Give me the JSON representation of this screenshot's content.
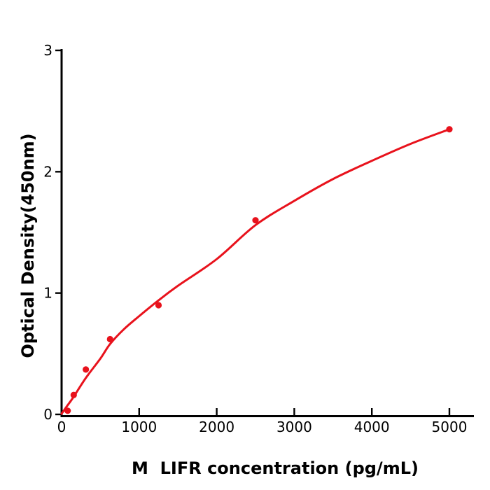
{
  "figure": {
    "background": "#ffffff"
  },
  "chart_data": {
    "type": "scatter",
    "title": "",
    "xlabel": "M  LIFR concentration (pg/mL)",
    "ylabel": "Optical Density(450nm)",
    "xlim": [
      0,
      5315
    ],
    "ylim": [
      0,
      3
    ],
    "x_tick_values": [
      0,
      1000,
      2000,
      3000,
      4000,
      5000
    ],
    "x_tick_labels": [
      "0",
      "1000",
      "2000",
      "3000",
      "4000",
      "5000"
    ],
    "y_tick_values": [
      0,
      1,
      2,
      3
    ],
    "y_tick_labels": [
      "0",
      "1",
      "2",
      "3"
    ],
    "grid": false,
    "legend": null,
    "axis_color": "#000000",
    "point_color": "#e8121c",
    "line_color": "#e8121c",
    "series": [
      {
        "name": "standard-data-points",
        "type": "scatter",
        "color": "#e8121c",
        "x": [
          78.125,
          156.25,
          312.5,
          625,
          1250,
          2500,
          5000
        ],
        "y": [
          0.03,
          0.16,
          0.37,
          0.62,
          0.9,
          1.6,
          2.35
        ]
      },
      {
        "name": "fitted-curve",
        "type": "line",
        "color": "#e8121c",
        "x": [
          0,
          60,
          150,
          312,
          500,
          625,
          800,
          1000,
          1250,
          1500,
          2000,
          2500,
          3000,
          3500,
          4000,
          4500,
          5000
        ],
        "y": [
          0.005,
          0.06,
          0.14,
          0.3,
          0.46,
          0.58,
          0.7,
          0.81,
          0.94,
          1.06,
          1.28,
          1.56,
          1.76,
          1.94,
          2.09,
          2.23,
          2.35
        ]
      }
    ]
  }
}
